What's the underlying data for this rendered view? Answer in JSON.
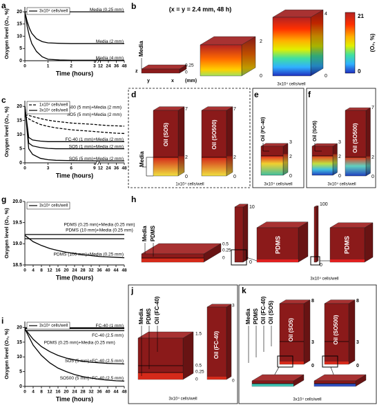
{
  "panels": [
    "a",
    "b",
    "c",
    "d",
    "e",
    "f",
    "g",
    "h",
    "i",
    "j",
    "k"
  ],
  "chart_data": [
    {
      "type": "line",
      "xlabel": "Time (hours)",
      "ylabel": "Oxygen level (O₂, %)",
      "x": [
        0,
        0.1,
        0.2,
        0.3,
        0.5,
        0.75,
        1,
        1.5,
        2,
        3,
        12,
        24,
        36,
        48
      ],
      "xlim": [
        0,
        48
      ],
      "xticks": [
        0,
        1,
        2,
        3,
        12,
        24,
        36,
        48
      ],
      "axis_break": [
        3,
        12
      ],
      "ylim": [
        0,
        22
      ],
      "yticks": [
        0,
        5,
        10,
        15,
        20
      ],
      "legend": [
        {
          "label": "3x10⁴ cells/well",
          "dash": "solid"
        }
      ],
      "series": [
        {
          "name": "Media (0.25 mm)",
          "color": "#000000",
          "dash": "solid",
          "values": [
            20,
            20,
            20,
            20,
            20,
            20,
            20,
            20,
            20,
            20,
            20,
            20,
            20,
            20
          ]
        },
        {
          "name": "Media (2 mm)",
          "color": "#000000",
          "dash": "solid",
          "values": [
            20,
            16,
            13.2,
            11.2,
            9,
            7.8,
            7.3,
            7.1,
            7,
            7,
            7,
            7,
            7,
            7
          ]
        },
        {
          "name": "Media (4 mm)",
          "color": "#000000",
          "dash": "solid",
          "values": [
            20,
            14,
            10,
            7,
            3.8,
            1.6,
            0.6,
            0.3,
            0.2,
            0.2,
            0.2,
            0.2,
            0.2,
            0.2
          ]
        }
      ]
    },
    {
      "type": "line",
      "xlabel": "Time (hours)",
      "ylabel": "Oxygen level (O₂, %)",
      "x": [
        0,
        0.5,
        1,
        2,
        3,
        4,
        6,
        9,
        12,
        24,
        36,
        48
      ],
      "xlim": [
        0,
        48
      ],
      "xticks": [
        0,
        3,
        6,
        9,
        12,
        24,
        36,
        48
      ],
      "axis_break": [
        9,
        12
      ],
      "ylim": [
        0,
        22
      ],
      "yticks": [
        0,
        5,
        10,
        15,
        20
      ],
      "legend": [
        {
          "label": "1x10⁴ cells/well",
          "dash": "dashed"
        },
        {
          "label": "3x10⁴ cells/well",
          "dash": "solid"
        }
      ],
      "series": [
        {
          "name": "SO500 (5 mm)+Media (2 mm)",
          "color": "#000000",
          "dash": "dashed",
          "values": [
            17,
            16.8,
            16.4,
            15.7,
            15.1,
            14.7,
            14.1,
            13.6,
            13.4,
            13.2,
            13.1,
            13
          ]
        },
        {
          "name": "SO5 (5 mm)+Media (2 mm)",
          "color": "#000000",
          "dash": "dashed",
          "values": [
            16.5,
            15.6,
            14.8,
            13.6,
            12.9,
            12.4,
            11.7,
            11.1,
            10.9,
            10.7,
            10.5,
            10.4
          ]
        },
        {
          "name": "FC-40 (1 mm)+Media (2 mm)",
          "color": "#000000",
          "dash": "solid",
          "values": [
            20,
            9,
            8.1,
            7.7,
            7.5,
            7.5,
            7.5,
            7.5,
            7.5,
            7.5,
            7.5,
            7.5
          ]
        },
        {
          "name": "SO5 (1 mm)+Media (2 mm)",
          "color": "#000000",
          "dash": "solid",
          "values": [
            20,
            7,
            6,
            5.4,
            5.1,
            5,
            5,
            5,
            5,
            5,
            5,
            5
          ]
        },
        {
          "name": "SO5 (5 mm)+Media (2 mm)",
          "color": "#000000",
          "dash": "solid",
          "values": [
            20,
            5,
            3,
            1.6,
            1.1,
            0.9,
            0.8,
            0.7,
            0.7,
            0.7,
            0.7,
            0.7
          ]
        }
      ]
    },
    {
      "type": "line",
      "xlabel": "Time (hours)",
      "ylabel": "Oxygen level (O₂, %)",
      "x": [
        0,
        4,
        8,
        12,
        16,
        20,
        24,
        28,
        32,
        36,
        40,
        44,
        48
      ],
      "xlim": [
        0,
        48
      ],
      "xticks": [
        0,
        4,
        8,
        12,
        16,
        20,
        24,
        28,
        32,
        36,
        40,
        44,
        48
      ],
      "ylim": [
        18.5,
        20
      ],
      "yticks": [
        18.5,
        {
          "value": 19,
          "label": "19.0"
        },
        19.5,
        {
          "value": 20,
          "label": "20.0"
        }
      ],
      "legend": [
        {
          "label": "3x10⁴ cells/well",
          "dash": "solid"
        }
      ],
      "series": [
        {
          "name": "PDMS (0.25 mm)+Media (0.25 mm)",
          "color": "#000000",
          "dash": "solid",
          "values": [
            19.22,
            19.22,
            19.22,
            19.22,
            19.22,
            19.22,
            19.22,
            19.22,
            19.22,
            19.22,
            19.22,
            19.22,
            19.22
          ]
        },
        {
          "name": "PDMS (10 mm)+Media (0.25 mm)",
          "color": "#000000",
          "dash": "solid",
          "values": [
            19.12,
            19.12,
            19.12,
            19.12,
            19.12,
            19.12,
            19.12,
            19.12,
            19.12,
            19.12,
            19.12,
            19.12,
            19.12
          ]
        },
        {
          "name": "PDMS (100 mm)+Media (0.25 mm)",
          "color": "#000000",
          "dash": "solid",
          "values": [
            19.2,
            19.05,
            18.96,
            18.89,
            18.84,
            18.8,
            18.77,
            18.74,
            18.72,
            18.7,
            18.69,
            18.68,
            18.67
          ]
        }
      ]
    },
    {
      "type": "line",
      "xlabel": "Time (hours)",
      "ylabel": "Oxygen level (O₂, %)",
      "x": [
        0,
        4,
        8,
        12,
        16,
        20,
        24,
        28,
        32,
        36,
        40,
        44,
        48
      ],
      "xlim": [
        0,
        48
      ],
      "xticks": [
        0,
        4,
        8,
        12,
        16,
        20,
        24,
        28,
        32,
        36,
        40,
        44,
        48
      ],
      "ylim": [
        0,
        22
      ],
      "yticks": [
        0,
        5,
        10,
        15,
        20
      ],
      "legend": [
        {
          "label": "3x10⁴ cells/well",
          "dash": "solid"
        }
      ],
      "series": [
        {
          "name": "FC-40 (1 mm)",
          "color": "#000000",
          "dash": "solid",
          "values": [
            19.6,
            19.6,
            19.6,
            19.6,
            19.6,
            19.6,
            19.6,
            19.6,
            19.6,
            19.6,
            19.6,
            19.6,
            19.6
          ]
        },
        {
          "name": "FC-40 (2.5 mm)",
          "color": "#000000",
          "dash": "solid",
          "values": [
            18.9,
            18.9,
            18.9,
            18.9,
            18.9,
            18.9,
            18.9,
            18.9,
            18.9,
            18.9,
            18.9,
            18.9,
            18.9
          ]
        },
        {
          "name": "PDMS (0.25 mm)+Media (0.25 mm)",
          "color": "#000000",
          "dash": "solid",
          "values": [
            19.9,
            19.9,
            19.9,
            19.9,
            19.9,
            19.9,
            19.9,
            19.9,
            19.9,
            19.9,
            19.9,
            19.9,
            19.9
          ]
        },
        {
          "name": "SO5 (5 mm)+FC-40 (2.5 mm)",
          "color": "#000000",
          "dash": "solid",
          "values": [
            19.5,
            16,
            13.5,
            11.8,
            10.5,
            9.6,
            9,
            8.5,
            8.2,
            8,
            7.8,
            7.7,
            7.6
          ]
        },
        {
          "name": "SO500 (5 mm)+FC-40 (2.5 mm)",
          "color": "#000000",
          "dash": "solid",
          "values": [
            19.5,
            14,
            10.5,
            8,
            6.2,
            5,
            4,
            3.3,
            2.8,
            2.4,
            2.1,
            1.9,
            1.8
          ]
        }
      ]
    }
  ],
  "diagrams": {
    "b": {
      "header": "(x = y = 2.4 mm, 48 h)",
      "labels": [
        "Media",
        "z",
        "y",
        "x",
        "(mm)",
        "0.25",
        "0",
        "2",
        "0",
        "4",
        "0",
        "3x10⁴ cells/well"
      ],
      "colorbar": [
        "21",
        "0",
        "(O₂, %)"
      ]
    },
    "d": [
      "Media",
      "Oil (SO5)",
      "7",
      "2",
      "0",
      "Oil (SO500)",
      "7",
      "2",
      "0",
      "1x10⁴ cells/well"
    ],
    "e": [
      "Oil (FC-40)",
      "3",
      "2",
      "0",
      "3x10⁴ cells/well"
    ],
    "f": [
      "Oil (SO5)",
      "3",
      "2",
      "0",
      "Oil (SO500)",
      "7",
      "2",
      "0",
      "3x10⁴ cells/well"
    ],
    "h": [
      "Media",
      "PDMS",
      "0.5",
      "0.25",
      "0",
      "10",
      "0",
      "PDMS",
      "100",
      "0",
      "PDMS",
      "3x10⁴ cells/well"
    ],
    "j": [
      "Media",
      "PDMS",
      "Oil (FC-40)",
      "1.5",
      "0.5",
      "0.25",
      "0",
      "Oil (FC-40)",
      "3",
      "0",
      "3x10⁴ cells/well"
    ],
    "k": [
      "Media",
      "PDMS",
      "Oil (FC-40)",
      "Oil (SO5)",
      "Oil (SO5)",
      "8",
      "3",
      "0",
      "Oil (SO500)",
      "8",
      "3",
      "0",
      "3x10⁴ cells/well"
    ]
  }
}
